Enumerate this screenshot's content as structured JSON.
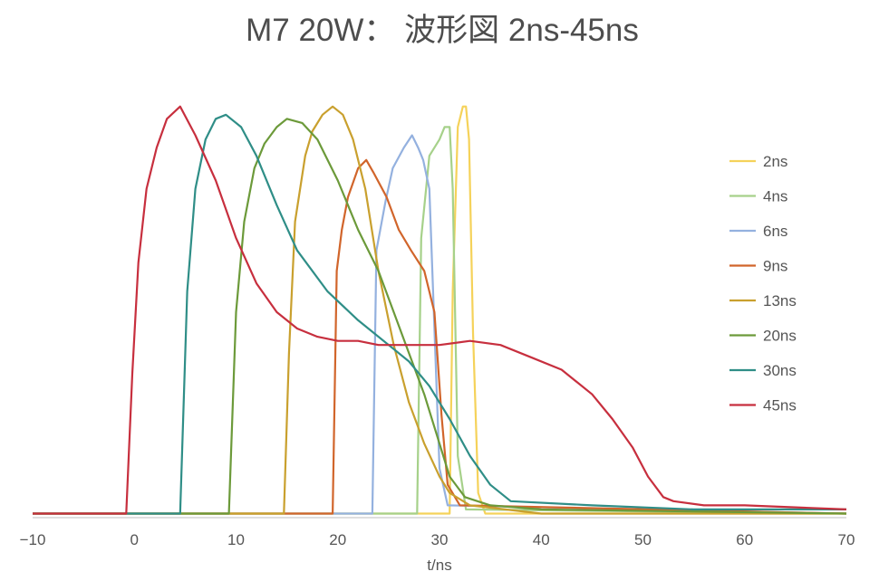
{
  "chart_data": {
    "type": "line",
    "title": "M7 20W： 波形図  2ns-45ns",
    "xlabel": "t/ns",
    "ylabel": "",
    "xlim": [
      -10,
      70
    ],
    "x_ticks": [
      -10,
      0,
      10,
      20,
      30,
      40,
      50,
      60,
      70
    ],
    "ylim": [
      0,
      1.05
    ],
    "grid": false,
    "legend_position": "right",
    "series": [
      {
        "name": "2ns",
        "color": "#f5d25a",
        "x": [
          -10,
          31,
          31.3,
          31.8,
          32.3,
          32.6,
          32.9,
          33.3,
          33.8,
          34.5,
          70
        ],
        "y": [
          0.01,
          0.01,
          0.55,
          0.95,
          1.0,
          1.0,
          0.92,
          0.45,
          0.06,
          0.01,
          0.01
        ]
      },
      {
        "name": "4ns",
        "color": "#a6d18a",
        "x": [
          -10,
          27.8,
          28.2,
          29,
          30,
          30.5,
          31,
          31.3,
          31.8,
          32.6,
          70
        ],
        "y": [
          0.01,
          0.01,
          0.68,
          0.88,
          0.92,
          0.95,
          0.95,
          0.8,
          0.15,
          0.02,
          0.01
        ]
      },
      {
        "name": "6ns",
        "color": "#94b1df",
        "x": [
          -10,
          23.4,
          23.8,
          24.7,
          25.4,
          26.5,
          27.3,
          27.9,
          28.4,
          29,
          29.3,
          30,
          30.8,
          70
        ],
        "y": [
          0.01,
          0.01,
          0.65,
          0.77,
          0.85,
          0.9,
          0.93,
          0.9,
          0.87,
          0.8,
          0.6,
          0.12,
          0.03,
          0.01
        ]
      },
      {
        "name": "9ns",
        "color": "#d1652b",
        "x": [
          -10,
          19.5,
          19.9,
          20.4,
          21,
          22,
          22.8,
          23.5,
          24.8,
          26,
          27.2,
          28.5,
          29.5,
          30.2,
          30.8,
          32,
          70
        ],
        "y": [
          0.01,
          0.01,
          0.6,
          0.7,
          0.78,
          0.85,
          0.87,
          0.84,
          0.78,
          0.7,
          0.65,
          0.6,
          0.5,
          0.25,
          0.08,
          0.03,
          0.01
        ]
      },
      {
        "name": "13ns",
        "color": "#c9a02e",
        "x": [
          -10,
          14.7,
          15.2,
          15.8,
          16.8,
          17.5,
          18.5,
          19.5,
          20.5,
          21.5,
          22.7,
          24,
          25.5,
          27,
          28.5,
          30,
          31,
          33,
          40,
          70
        ],
        "y": [
          0.01,
          0.01,
          0.4,
          0.72,
          0.88,
          0.94,
          0.98,
          1.0,
          0.98,
          0.92,
          0.8,
          0.6,
          0.42,
          0.28,
          0.18,
          0.1,
          0.06,
          0.03,
          0.01,
          0.01
        ]
      },
      {
        "name": "20ns",
        "color": "#6c9a3a",
        "x": [
          -10,
          9.3,
          10,
          10.8,
          11.8,
          12.8,
          14,
          15,
          16.5,
          18,
          20,
          22,
          24,
          25.5,
          27,
          28.5,
          30,
          31,
          32.5,
          35,
          40,
          70
        ],
        "y": [
          0.01,
          0.01,
          0.5,
          0.72,
          0.85,
          0.91,
          0.95,
          0.97,
          0.96,
          0.92,
          0.82,
          0.7,
          0.6,
          0.5,
          0.4,
          0.3,
          0.18,
          0.1,
          0.05,
          0.03,
          0.02,
          0.01
        ]
      },
      {
        "name": "30ns",
        "color": "#2f8e87",
        "x": [
          -10,
          4.5,
          5.2,
          6,
          7,
          8,
          9,
          10.5,
          12,
          14,
          16,
          19,
          22,
          25,
          27,
          29,
          31,
          33,
          35,
          37,
          45,
          55,
          70
        ],
        "y": [
          0.01,
          0.01,
          0.55,
          0.8,
          0.92,
          0.97,
          0.98,
          0.95,
          0.88,
          0.76,
          0.65,
          0.55,
          0.48,
          0.42,
          0.38,
          0.32,
          0.24,
          0.15,
          0.08,
          0.04,
          0.03,
          0.02,
          0.02
        ]
      },
      {
        "name": "45ns",
        "color": "#c72f3e",
        "x": [
          -10,
          -0.8,
          -0.2,
          0.4,
          1.2,
          2.2,
          3.2,
          4.5,
          6,
          8,
          10,
          12,
          14,
          16,
          18,
          20,
          22,
          24,
          27,
          30,
          33,
          36,
          39,
          42,
          45,
          47,
          49,
          50.5,
          52,
          53,
          56,
          60,
          65,
          70
        ],
        "y": [
          0.01,
          0.01,
          0.35,
          0.62,
          0.8,
          0.9,
          0.97,
          1.0,
          0.93,
          0.82,
          0.68,
          0.57,
          0.5,
          0.46,
          0.44,
          0.43,
          0.43,
          0.42,
          0.42,
          0.42,
          0.43,
          0.42,
          0.39,
          0.36,
          0.3,
          0.24,
          0.17,
          0.1,
          0.05,
          0.04,
          0.03,
          0.03,
          0.025,
          0.02
        ]
      }
    ]
  }
}
